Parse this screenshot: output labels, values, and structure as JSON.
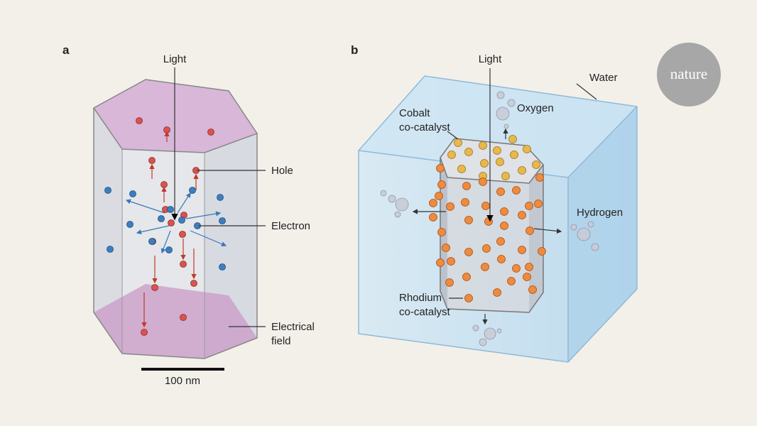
{
  "panels": [
    {
      "label": "a",
      "annotations": [
        {
          "lines": [
            "Light"
          ]
        },
        {
          "lines": [
            "Hole"
          ]
        },
        {
          "lines": [
            "Electron"
          ]
        },
        {
          "lines": [
            "Electrical",
            "field"
          ]
        }
      ],
      "scale_bar": "100 nm"
    },
    {
      "label": "b",
      "annotations": [
        {
          "lines": [
            "Light"
          ]
        },
        {
          "lines": [
            "Water"
          ]
        },
        {
          "lines": [
            "Oxygen"
          ]
        },
        {
          "lines": [
            "Cobalt",
            "co-catalyst"
          ]
        },
        {
          "lines": [
            "Hydrogen"
          ]
        },
        {
          "lines": [
            "Rhodium",
            "co-catalyst"
          ]
        }
      ]
    }
  ],
  "logo": "nature"
}
